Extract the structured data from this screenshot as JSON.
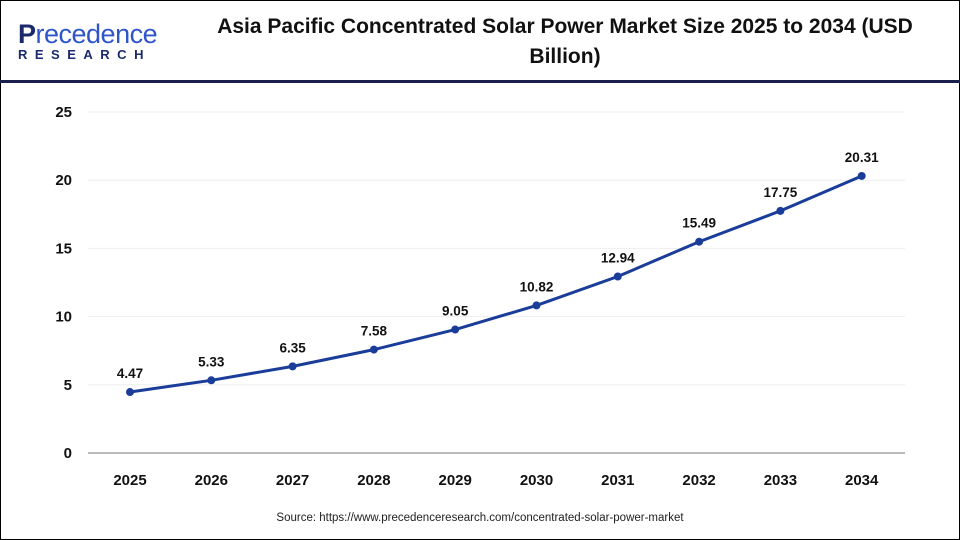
{
  "logo": {
    "text_top": "Precedence",
    "text_bottom": "RESEARCH"
  },
  "source": "Source: https://www.precedenceresearch.com/concentrated-solar-power-market",
  "chart_data": {
    "type": "line",
    "title": "Asia Pacific Concentrated Solar Power Market Size 2025 to 2034 (USD Billion)",
    "categories": [
      "2025",
      "2026",
      "2027",
      "2028",
      "2029",
      "2030",
      "2031",
      "2032",
      "2033",
      "2034"
    ],
    "values": [
      4.47,
      5.33,
      6.35,
      7.58,
      9.05,
      10.82,
      12.94,
      15.49,
      17.75,
      20.31
    ],
    "data_labels": [
      "4.47",
      "5.33",
      "6.35",
      "7.58",
      "9.05",
      "10.82",
      "12.94",
      "15.49",
      "17.75",
      "20.31"
    ],
    "ylim": [
      0,
      25
    ],
    "yticks": [
      "0",
      "5",
      "10",
      "15",
      "20",
      "25"
    ],
    "xlabel": "",
    "ylabel": "",
    "grid": true,
    "color": "#1a3d9a"
  }
}
